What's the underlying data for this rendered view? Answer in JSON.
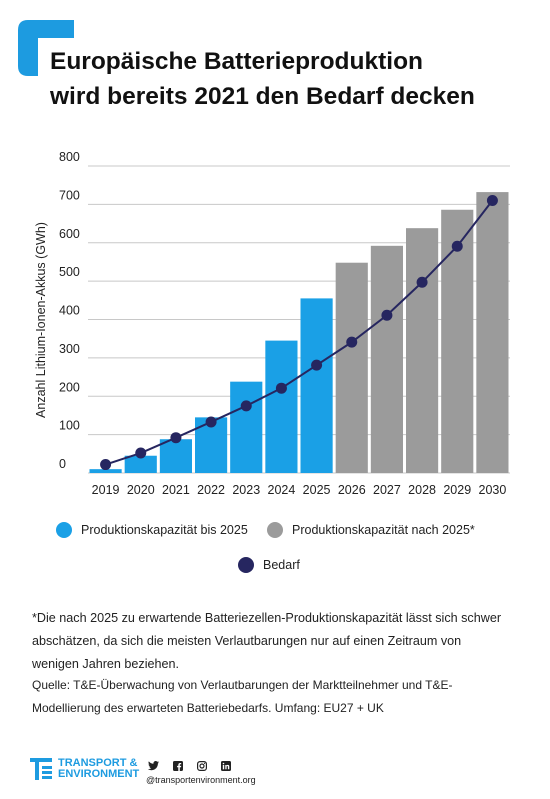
{
  "header": {
    "title_line1": "Europäische Batterieproduktion",
    "title_line2": "wird bereits 2021 den Bedarf decken"
  },
  "colors": {
    "accent": "#1d9be0",
    "bars_until_2025": "#1aa0e6",
    "bars_after_2025": "#9b9b9b",
    "demand": "#262660"
  },
  "chart_data": {
    "type": "bar",
    "categories": [
      "2019",
      "2020",
      "2021",
      "2022",
      "2023",
      "2024",
      "2025",
      "2026",
      "2027",
      "2028",
      "2029",
      "2030"
    ],
    "series": [
      {
        "name": "Produktionskapazität bis 2025",
        "kind": "bar",
        "color": "#1aa0e6",
        "values": [
          10,
          45,
          88,
          145,
          238,
          345,
          455,
          null,
          null,
          null,
          null,
          null
        ]
      },
      {
        "name": "Produktionskapazität nach 2025*",
        "kind": "bar",
        "color": "#9b9b9b",
        "values": [
          null,
          null,
          null,
          null,
          null,
          null,
          null,
          548,
          592,
          638,
          686,
          732
        ]
      },
      {
        "name": "Bedarf",
        "kind": "line",
        "color": "#262660",
        "values": [
          22,
          52,
          92,
          133,
          175,
          221,
          281,
          341,
          411,
          497,
          591,
          710
        ]
      }
    ],
    "ylabel": "Anzahl Lithium-Ionen-Akkus (GWh)",
    "xlabel": "",
    "ylim": [
      0,
      800
    ],
    "yticks": [
      "0",
      "100",
      "200",
      "300",
      "400",
      "500",
      "600",
      "700",
      "800"
    ],
    "grid": true,
    "legend_position": "bottom"
  },
  "legend": {
    "item1": "Produktionskapazität bis 2025",
    "item2": "Produktionskapazität nach 2025*",
    "item3": "Bedarf"
  },
  "footnote": {
    "line1": "*Die nach 2025 zu erwartende Batteriezellen-Produktionskapazität lässt sich schwer",
    "line2": "abschätzen, da sich die meisten Verlautbarungen nur auf einen Zeitraum von",
    "line3": "wenigen Jahren beziehen."
  },
  "source": {
    "line1": "Quelle: T&E-Überwachung von Verlautbarungen der Marktteilnehmer und T&E-",
    "line2": "Modellierung des erwarteten Batteriebedarfs. Umfang: EU27 + UK"
  },
  "footer": {
    "logo_line1": "TRANSPORT &",
    "logo_line2": "ENVIRONMENT",
    "website": "@transportenvironment.org",
    "social_icons": [
      "twitter-icon",
      "facebook-icon",
      "instagram-icon",
      "linkedin-icon"
    ]
  }
}
